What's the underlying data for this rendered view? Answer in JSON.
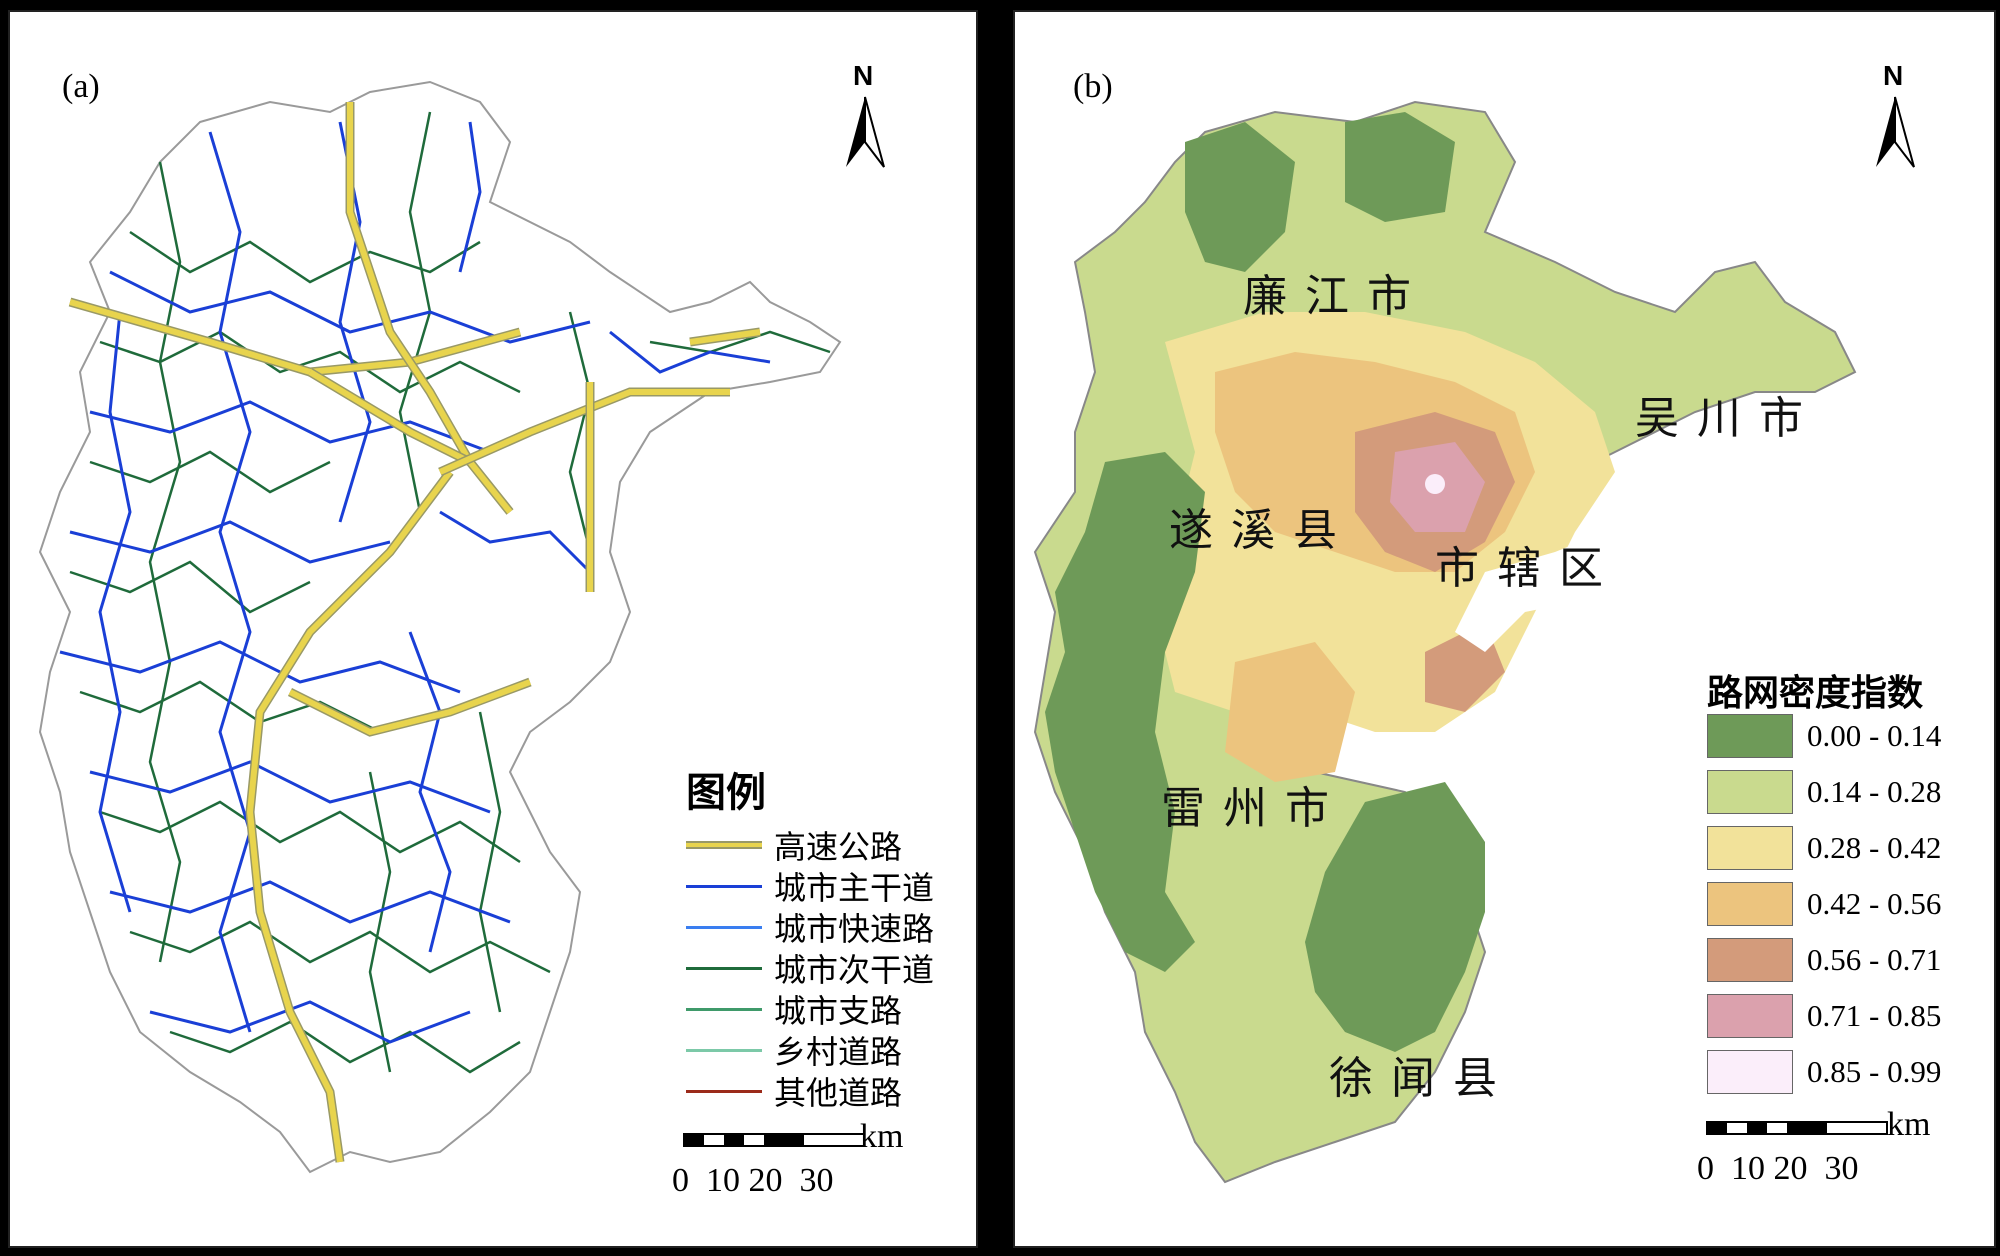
{
  "panel_a": {
    "label": "(a)",
    "north_label": "N",
    "legend_title": "图例",
    "legend_items": [
      {
        "label": "高速公路",
        "color": "#e8d44d",
        "border": "#999966"
      },
      {
        "label": "城市主干道",
        "color": "#1a3fd6"
      },
      {
        "label": "城市快速路",
        "color": "#3a7ef0"
      },
      {
        "label": "城市次干道",
        "color": "#1f6b3b"
      },
      {
        "label": "城市支路",
        "color": "#3f9a6a"
      },
      {
        "label": "乡村道路",
        "color": "#7cc9a8"
      },
      {
        "label": "其他道路",
        "color": "#9b2a1a"
      }
    ],
    "scale_unit": "km",
    "scale_ticks": "0  10 20  30"
  },
  "panel_b": {
    "label": "(b)",
    "north_label": "N",
    "legend_title": "路网密度指数",
    "classes": [
      {
        "range": "0.00 - 0.14",
        "color": "#6e9a58"
      },
      {
        "range": "0.14 - 0.28",
        "color": "#c9da8e"
      },
      {
        "range": "0.28 - 0.42",
        "color": "#f2e29a"
      },
      {
        "range": "0.42 - 0.56",
        "color": "#ecc47e"
      },
      {
        "range": "0.56 - 0.71",
        "color": "#d39b7b"
      },
      {
        "range": "0.71 - 0.85",
        "color": "#dba1ad"
      },
      {
        "range": "0.85 - 0.99",
        "color": "#fbeefa"
      }
    ],
    "regions": [
      "廉江市",
      "吴川市",
      "遂溪县",
      "市辖区",
      "雷州市",
      "徐闻县"
    ],
    "scale_unit": "km",
    "scale_ticks": "0  10 20  30"
  }
}
